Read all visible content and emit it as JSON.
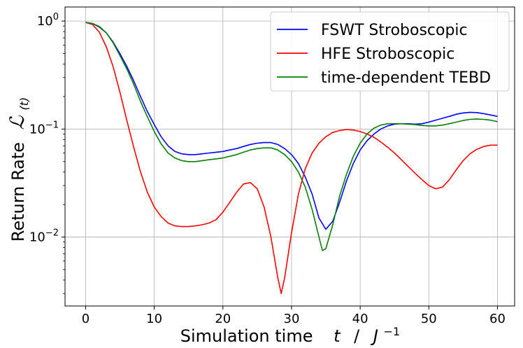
{
  "chart_data": {
    "type": "line",
    "title": "",
    "xlabel": "Simulation time",
    "xlabel_var": "t",
    "xlabel_sep": "/",
    "xlabel_unit_base": "J",
    "xlabel_unit_exp": "−1",
    "ylabel": "Return Rate",
    "ylabel_symbol": "ℒ",
    "ylabel_arg": "(t)",
    "xlim": [
      -3,
      62.5
    ],
    "ylim": [
      0.0023,
      1.35
    ],
    "yscale": "log",
    "grid": true,
    "legend_position": "top-right",
    "xticks": [
      {
        "value": 0,
        "label": "0"
      },
      {
        "value": 10,
        "label": "10"
      },
      {
        "value": 20,
        "label": "20"
      },
      {
        "value": 30,
        "label": "30"
      },
      {
        "value": 40,
        "label": "40"
      },
      {
        "value": 50,
        "label": "50"
      },
      {
        "value": 60,
        "label": "60"
      }
    ],
    "yticks": [
      {
        "value": 1,
        "base": "10",
        "exp": "0"
      },
      {
        "value": 0.1,
        "base": "10",
        "exp": "−1"
      },
      {
        "value": 0.01,
        "base": "10",
        "exp": "−2"
      }
    ],
    "series": [
      {
        "name": "FSWT Stroboscopic",
        "color": "#0000ff",
        "x": [
          0,
          1,
          2,
          3,
          4,
          5,
          6,
          7,
          8,
          9,
          10,
          11,
          12,
          13,
          14,
          15,
          16,
          17,
          18,
          19,
          20,
          21,
          22,
          23,
          24,
          25,
          26,
          27,
          28,
          29,
          30,
          31,
          32,
          33,
          34,
          35,
          36,
          37,
          38,
          39,
          40,
          41,
          42,
          43,
          44,
          45,
          46,
          47,
          48,
          49,
          50,
          51,
          52,
          53,
          54,
          55,
          56,
          57,
          58,
          59,
          60
        ],
        "y": [
          0.97,
          0.95,
          0.88,
          0.78,
          0.64,
          0.5,
          0.38,
          0.28,
          0.2,
          0.145,
          0.11,
          0.085,
          0.07,
          0.062,
          0.059,
          0.058,
          0.058,
          0.059,
          0.06,
          0.061,
          0.062,
          0.064,
          0.066,
          0.069,
          0.072,
          0.074,
          0.075,
          0.075,
          0.072,
          0.066,
          0.058,
          0.048,
          0.036,
          0.025,
          0.015,
          0.0118,
          0.014,
          0.021,
          0.033,
          0.048,
          0.064,
          0.078,
          0.09,
          0.1,
          0.107,
          0.111,
          0.112,
          0.112,
          0.111,
          0.112,
          0.116,
          0.121,
          0.126,
          0.131,
          0.137,
          0.141,
          0.143,
          0.142,
          0.139,
          0.135,
          0.131
        ]
      },
      {
        "name": "HFE Stroboscopic",
        "color": "#ff0000",
        "x": [
          0,
          1,
          2,
          3,
          4,
          5,
          6,
          7,
          8,
          9,
          10,
          11,
          12,
          13,
          14,
          15,
          16,
          17,
          18,
          19,
          20,
          21,
          22,
          23,
          24,
          25,
          26,
          27,
          28,
          28.5,
          29,
          30,
          31,
          32,
          33,
          34,
          35,
          36,
          37,
          38,
          39,
          40,
          41,
          42,
          43,
          44,
          45,
          46,
          47,
          48,
          49,
          50,
          51,
          52,
          53,
          54,
          55,
          56,
          57,
          58,
          59,
          60
        ],
        "y": [
          0.97,
          0.93,
          0.79,
          0.58,
          0.38,
          0.22,
          0.12,
          0.068,
          0.04,
          0.026,
          0.019,
          0.0155,
          0.0135,
          0.0127,
          0.0125,
          0.0125,
          0.0127,
          0.013,
          0.0135,
          0.0145,
          0.017,
          0.021,
          0.026,
          0.031,
          0.032,
          0.028,
          0.019,
          0.01,
          0.0042,
          0.003,
          0.0042,
          0.011,
          0.025,
          0.043,
          0.06,
          0.074,
          0.085,
          0.093,
          0.097,
          0.099,
          0.098,
          0.095,
          0.09,
          0.084,
          0.076,
          0.068,
          0.06,
          0.052,
          0.045,
          0.039,
          0.034,
          0.03,
          0.028,
          0.029,
          0.034,
          0.042,
          0.051,
          0.059,
          0.065,
          0.069,
          0.071,
          0.071
        ]
      },
      {
        "name": "time-dependent TEBD",
        "color": "#008000",
        "x": [
          0,
          1,
          2,
          3,
          4,
          5,
          6,
          7,
          8,
          9,
          10,
          11,
          12,
          13,
          14,
          15,
          16,
          17,
          18,
          19,
          20,
          21,
          22,
          23,
          24,
          25,
          26,
          27,
          28,
          29,
          30,
          31,
          32,
          33,
          34,
          34.5,
          35,
          36,
          37,
          38,
          39,
          40,
          41,
          42,
          43,
          44,
          45,
          46,
          47,
          48,
          49,
          50,
          51,
          52,
          53,
          54,
          55,
          56,
          57,
          58,
          59,
          60
        ],
        "y": [
          0.97,
          0.95,
          0.89,
          0.78,
          0.63,
          0.48,
          0.36,
          0.26,
          0.18,
          0.13,
          0.095,
          0.073,
          0.06,
          0.054,
          0.051,
          0.05,
          0.05,
          0.051,
          0.052,
          0.053,
          0.054,
          0.056,
          0.058,
          0.061,
          0.064,
          0.066,
          0.067,
          0.067,
          0.064,
          0.058,
          0.05,
          0.04,
          0.029,
          0.018,
          0.01,
          0.0075,
          0.0078,
          0.013,
          0.024,
          0.038,
          0.056,
          0.074,
          0.09,
          0.102,
          0.109,
          0.112,
          0.112,
          0.112,
          0.111,
          0.11,
          0.108,
          0.107,
          0.107,
          0.109,
          0.112,
          0.116,
          0.12,
          0.123,
          0.124,
          0.123,
          0.121,
          0.117
        ]
      }
    ]
  }
}
